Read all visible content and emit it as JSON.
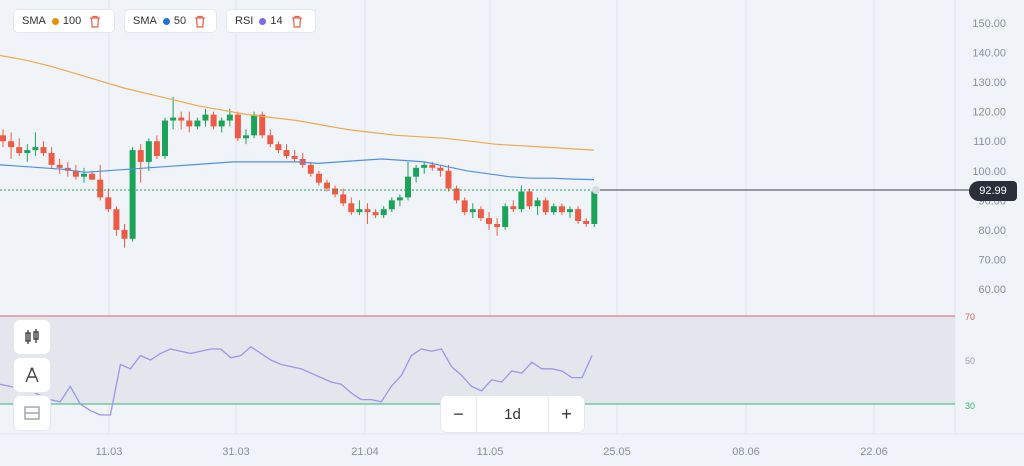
{
  "indicators": [
    {
      "name": "SMA",
      "value": "100",
      "color": "#e8900c",
      "icon": "trash-icon"
    },
    {
      "name": "SMA",
      "value": "50",
      "color": "#1f6fe5",
      "icon": "trash-icon"
    },
    {
      "name": "RSI",
      "value": "14",
      "color": "#7b6ae0",
      "icon": "trash-icon"
    }
  ],
  "price_axis": [
    "150.00",
    "140.00",
    "130.00",
    "120.00",
    "110.00",
    "100.00",
    "90.00",
    "80.00",
    "70.00",
    "60.00"
  ],
  "current_price": "92.99",
  "rsi_axis": {
    "upper": "70",
    "middle": "50",
    "lower": "30"
  },
  "date_axis": [
    "11.03",
    "31.03",
    "21.04",
    "11.05",
    "25.05",
    "08.06",
    "22.06"
  ],
  "timeframe": "1d",
  "zoom_out_label": "−",
  "zoom_in_label": "+",
  "side_tools": [
    "candles-icon",
    "draw-tool-icon",
    "layout-icon"
  ],
  "colors": {
    "up": "#1ba35a",
    "down": "#ee5b45",
    "sma50": "#4f8ef0",
    "sma100": "#f0a94a",
    "rsi": "#9c95f0",
    "rsi_upper": "#e06060",
    "rsi_lower": "#3cb371"
  },
  "chart_data": {
    "type": "candlestick",
    "price_range": [
      50,
      153
    ],
    "candles": [
      {
        "o": 112,
        "h": 114,
        "l": 108,
        "c": 110
      },
      {
        "o": 110,
        "h": 113,
        "l": 104,
        "c": 108
      },
      {
        "o": 108,
        "h": 111,
        "l": 105,
        "c": 106
      },
      {
        "o": 106,
        "h": 109,
        "l": 103,
        "c": 107
      },
      {
        "o": 107,
        "h": 113,
        "l": 105,
        "c": 108
      },
      {
        "o": 108,
        "h": 110,
        "l": 105,
        "c": 106
      },
      {
        "o": 106,
        "h": 108,
        "l": 101,
        "c": 102
      },
      {
        "o": 102,
        "h": 104,
        "l": 99,
        "c": 101
      },
      {
        "o": 101,
        "h": 103,
        "l": 98,
        "c": 100
      },
      {
        "o": 100,
        "h": 102,
        "l": 97,
        "c": 98
      },
      {
        "o": 98,
        "h": 101,
        "l": 96,
        "c": 99
      },
      {
        "o": 99,
        "h": 100,
        "l": 97,
        "c": 97
      },
      {
        "o": 97,
        "h": 102,
        "l": 90,
        "c": 91
      },
      {
        "o": 91,
        "h": 94,
        "l": 86,
        "c": 87
      },
      {
        "o": 87,
        "h": 88,
        "l": 78,
        "c": 80
      },
      {
        "o": 80,
        "h": 82,
        "l": 74,
        "c": 77
      },
      {
        "o": 77,
        "h": 108,
        "l": 76,
        "c": 107
      },
      {
        "o": 107,
        "h": 109,
        "l": 96,
        "c": 103
      },
      {
        "o": 103,
        "h": 111,
        "l": 100,
        "c": 110
      },
      {
        "o": 110,
        "h": 112,
        "l": 104,
        "c": 105
      },
      {
        "o": 105,
        "h": 118,
        "l": 104,
        "c": 117
      },
      {
        "o": 117,
        "h": 125,
        "l": 114,
        "c": 118
      },
      {
        "o": 118,
        "h": 120,
        "l": 114,
        "c": 117
      },
      {
        "o": 117,
        "h": 120,
        "l": 113,
        "c": 115
      },
      {
        "o": 115,
        "h": 118,
        "l": 114,
        "c": 117
      },
      {
        "o": 117,
        "h": 121,
        "l": 115,
        "c": 119
      },
      {
        "o": 119,
        "h": 120,
        "l": 114,
        "c": 115
      },
      {
        "o": 115,
        "h": 118,
        "l": 113,
        "c": 117
      },
      {
        "o": 117,
        "h": 121,
        "l": 115,
        "c": 119
      },
      {
        "o": 119,
        "h": 120,
        "l": 110,
        "c": 111
      },
      {
        "o": 111,
        "h": 114,
        "l": 109,
        "c": 112
      },
      {
        "o": 112,
        "h": 120,
        "l": 111,
        "c": 119
      },
      {
        "o": 119,
        "h": 120,
        "l": 111,
        "c": 112
      },
      {
        "o": 112,
        "h": 114,
        "l": 108,
        "c": 109
      },
      {
        "o": 109,
        "h": 110,
        "l": 106,
        "c": 107
      },
      {
        "o": 107,
        "h": 109,
        "l": 104,
        "c": 105
      },
      {
        "o": 105,
        "h": 107,
        "l": 103,
        "c": 104
      },
      {
        "o": 104,
        "h": 106,
        "l": 101,
        "c": 102
      },
      {
        "o": 102,
        "h": 103,
        "l": 98,
        "c": 99
      },
      {
        "o": 99,
        "h": 100,
        "l": 95,
        "c": 96
      },
      {
        "o": 96,
        "h": 97,
        "l": 93,
        "c": 94
      },
      {
        "o": 94,
        "h": 95,
        "l": 91,
        "c": 92
      },
      {
        "o": 92,
        "h": 94,
        "l": 88,
        "c": 89
      },
      {
        "o": 89,
        "h": 91,
        "l": 85,
        "c": 86
      },
      {
        "o": 86,
        "h": 90,
        "l": 85,
        "c": 87
      },
      {
        "o": 87,
        "h": 89,
        "l": 82,
        "c": 86
      },
      {
        "o": 86,
        "h": 87,
        "l": 84,
        "c": 85
      },
      {
        "o": 85,
        "h": 88,
        "l": 84,
        "c": 87
      },
      {
        "o": 87,
        "h": 91,
        "l": 86,
        "c": 90
      },
      {
        "o": 90,
        "h": 92,
        "l": 88,
        "c": 91
      },
      {
        "o": 91,
        "h": 103,
        "l": 90,
        "c": 98
      },
      {
        "o": 98,
        "h": 102,
        "l": 96,
        "c": 101
      },
      {
        "o": 101,
        "h": 103,
        "l": 99,
        "c": 102
      },
      {
        "o": 102,
        "h": 103,
        "l": 100,
        "c": 101
      },
      {
        "o": 101,
        "h": 102,
        "l": 98,
        "c": 100
      },
      {
        "o": 100,
        "h": 102,
        "l": 93,
        "c": 94
      },
      {
        "o": 94,
        "h": 95,
        "l": 89,
        "c": 90
      },
      {
        "o": 90,
        "h": 91,
        "l": 85,
        "c": 86
      },
      {
        "o": 86,
        "h": 89,
        "l": 84,
        "c": 87
      },
      {
        "o": 87,
        "h": 88,
        "l": 83,
        "c": 84
      },
      {
        "o": 84,
        "h": 86,
        "l": 80,
        "c": 82
      },
      {
        "o": 82,
        "h": 84,
        "l": 78,
        "c": 81
      },
      {
        "o": 81,
        "h": 89,
        "l": 80,
        "c": 88
      },
      {
        "o": 88,
        "h": 90,
        "l": 86,
        "c": 87
      },
      {
        "o": 87,
        "h": 95,
        "l": 86,
        "c": 93
      },
      {
        "o": 93,
        "h": 94,
        "l": 87,
        "c": 88
      },
      {
        "o": 88,
        "h": 91,
        "l": 85,
        "c": 90
      },
      {
        "o": 90,
        "h": 91,
        "l": 85,
        "c": 86
      },
      {
        "o": 86,
        "h": 89,
        "l": 85,
        "c": 88
      },
      {
        "o": 88,
        "h": 89,
        "l": 85,
        "c": 86
      },
      {
        "o": 86,
        "h": 88,
        "l": 84,
        "c": 87
      },
      {
        "o": 87,
        "h": 88,
        "l": 82,
        "c": 83
      },
      {
        "o": 83,
        "h": 84,
        "l": 81,
        "c": 82
      },
      {
        "o": 82,
        "h": 94,
        "l": 81,
        "c": 93
      }
    ],
    "sma50": [
      102,
      101.5,
      101,
      100.5,
      99.5,
      100,
      100.5,
      101,
      101.5,
      102,
      102.5,
      103,
      103,
      103,
      103,
      102.5,
      103,
      103.5,
      104,
      103.5,
      103,
      101.5,
      100,
      99,
      98,
      97.5,
      97.5,
      97.2,
      97
    ],
    "sma100": [
      139,
      137.5,
      135.5,
      133,
      130.5,
      128,
      126,
      124,
      122,
      120.5,
      119,
      118,
      117,
      115.5,
      114,
      113,
      112,
      111.5,
      111,
      110,
      109,
      108.5,
      108,
      107.5,
      107
    ],
    "rsi": [
      39,
      38,
      37,
      36,
      34,
      32,
      31,
      38,
      30,
      27,
      25,
      25,
      48,
      46,
      52,
      50,
      53,
      55,
      54,
      53,
      54,
      55,
      55,
      51,
      52,
      56,
      53,
      50,
      48,
      47,
      46,
      44,
      42,
      40,
      39,
      35,
      32,
      32,
      31,
      38,
      43,
      52,
      55,
      54,
      55,
      47,
      43,
      38,
      36,
      41,
      40,
      45,
      44,
      49,
      46,
      46,
      45,
      42,
      42,
      52
    ],
    "rsi_levels": [
      70,
      50,
      30
    ]
  }
}
